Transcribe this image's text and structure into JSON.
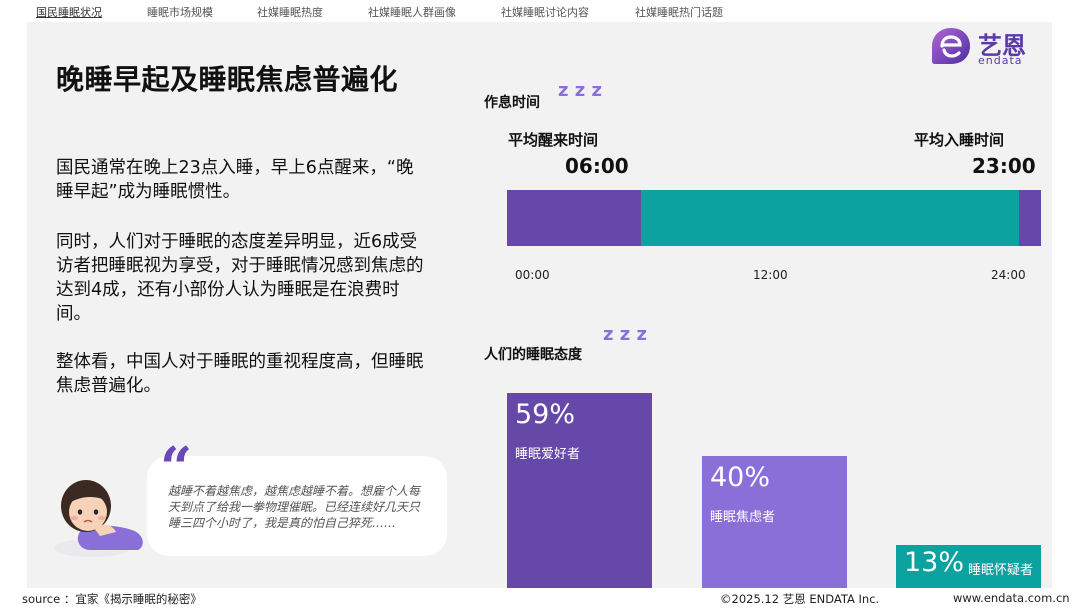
{
  "nav": {
    "tabs": [
      {
        "label": "国民睡眠状况",
        "active": true
      },
      {
        "label": "睡眠市场规模",
        "active": false
      },
      {
        "label": "社媒睡眠热度",
        "active": false
      },
      {
        "label": "社媒睡眠人群画像",
        "active": false
      },
      {
        "label": "社媒睡眠讨论内容",
        "active": false
      },
      {
        "label": "社媒睡眠热门话题",
        "active": false
      }
    ]
  },
  "logo": {
    "cn": "艺恩",
    "en": "endata",
    "accent": "#5b3aa8"
  },
  "title": "晚睡早起及睡眠焦虑普遍化",
  "paragraphs": [
    "国民通常在晚上23点入睡，早上6点醒来，“晚睡早起”成为睡眠惯性。",
    "同时，人们对于睡眠的态度差异明显，近6成受访者把睡眠视为享受，对于睡眠情况感到焦虑的达到4成，还有小部份人认为睡眠是在浪费时间。",
    "整体看，中国人对于睡眠的重视程度高，但睡眠焦虑普遍化。"
  ],
  "schedule": {
    "heading": "作息时间",
    "zzz": "z z z",
    "wake_label": "平均醒来时间",
    "wake_time": "06:00",
    "sleep_label": "平均入睡时间",
    "sleep_time": "23:00",
    "ticks": [
      "00:00",
      "12:00",
      "24:00"
    ]
  },
  "attitude": {
    "heading": "人们的睡眠态度",
    "zzz": "z z z"
  },
  "chart_data": [
    {
      "type": "bar",
      "orientation": "horizontal-timeline",
      "x_range": [
        0,
        24
      ],
      "segments": [
        {
          "start": 0,
          "end": 6,
          "state": "sleep",
          "color": "#6548a8"
        },
        {
          "start": 6,
          "end": 23,
          "state": "awake",
          "color": "#0ba29f"
        },
        {
          "start": 23,
          "end": 24,
          "state": "sleep",
          "color": "#6548a8"
        }
      ],
      "tick_labels": [
        "00:00",
        "12:00",
        "24:00"
      ]
    },
    {
      "type": "bar",
      "categories": [
        "睡眠爱好者",
        "睡眠焦虑者",
        "睡眠怀疑者"
      ],
      "values": [
        59,
        40,
        13
      ],
      "labels": [
        "59%",
        "40%",
        "13%"
      ],
      "colors": [
        "#6548a8",
        "#8a6fd8",
        "#0ba29f"
      ]
    }
  ],
  "quote": {
    "mark": "“",
    "text": "越睡不着越焦虑，越焦虑越睡不着。想雇个人每天到点了给我一拳物理催眠。已经连续好几天只睡三四个小时了，我是真的怕自己猝死……"
  },
  "footer": {
    "source": "source ：宜家《揭示睡眠的秘密》",
    "copyright": "©2025.12  艺恩 ENDATA Inc.",
    "website": "www.endata.com.cn"
  }
}
